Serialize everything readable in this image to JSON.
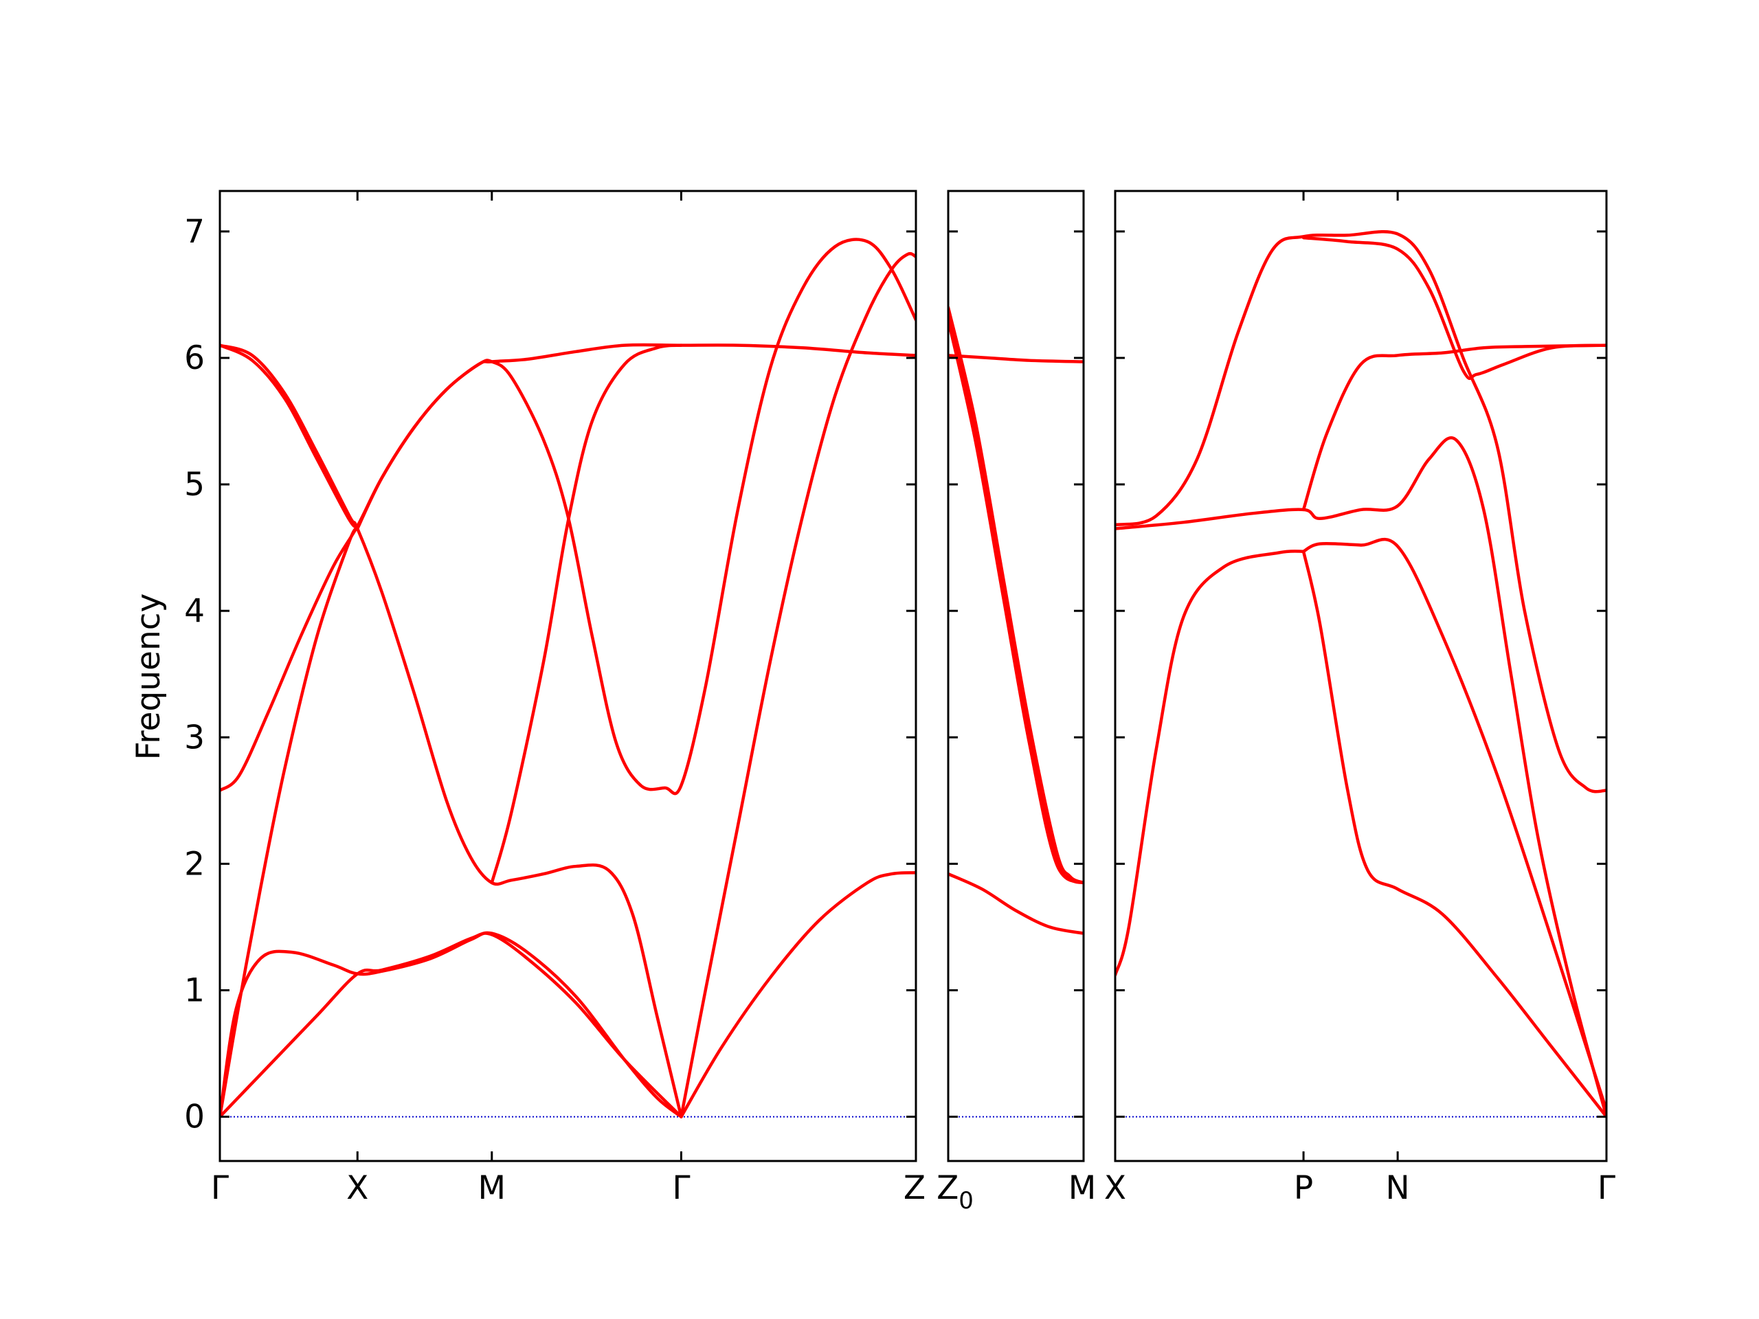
{
  "chart_data": {
    "type": "line",
    "ylabel": "Frequency",
    "ylim": [
      -0.35,
      7.32
    ],
    "yticks": [
      0,
      1,
      2,
      3,
      4,
      5,
      6,
      7
    ],
    "line_color": "#ff0000",
    "zero_line_color": "#0000cc",
    "panels": [
      {
        "id": "panel-1",
        "xlim": [
          0,
          4.3
        ],
        "labels": [
          {
            "x": 0.0,
            "text": "Γ"
          },
          {
            "x": 0.85,
            "text": "X"
          },
          {
            "x": 1.68,
            "text": "M"
          },
          {
            "x": 2.85,
            "text": "Γ"
          },
          {
            "x": 4.3,
            "text": "Z"
          }
        ],
        "bands": [
          [
            [
              0,
              2.58
            ],
            [
              0.12,
              2.7
            ],
            [
              0.3,
              3.2
            ],
            [
              0.5,
              3.8
            ],
            [
              0.7,
              4.35
            ],
            [
              0.85,
              4.67
            ],
            [
              1.0,
              5.05
            ],
            [
              1.2,
              5.45
            ],
            [
              1.4,
              5.75
            ],
            [
              1.6,
              5.95
            ],
            [
              1.68,
              5.97
            ],
            [
              1.9,
              5.99
            ],
            [
              2.2,
              6.05
            ],
            [
              2.5,
              6.1
            ],
            [
              2.85,
              6.1
            ],
            [
              3.2,
              6.1
            ],
            [
              3.6,
              6.08
            ],
            [
              4.0,
              6.04
            ],
            [
              4.3,
              6.02
            ]
          ],
          [
            [
              0,
              6.1
            ],
            [
              0.2,
              6.02
            ],
            [
              0.4,
              5.72
            ],
            [
              0.6,
              5.25
            ],
            [
              0.8,
              4.75
            ],
            [
              0.85,
              4.65
            ],
            [
              1.0,
              4.15
            ],
            [
              1.2,
              3.35
            ],
            [
              1.4,
              2.5
            ],
            [
              1.55,
              2.05
            ],
            [
              1.68,
              1.85
            ],
            [
              1.8,
              1.87
            ],
            [
              2.0,
              1.92
            ],
            [
              2.2,
              1.98
            ],
            [
              2.4,
              1.95
            ],
            [
              2.55,
              1.6
            ],
            [
              2.7,
              0.8
            ],
            [
              2.85,
              0.0
            ]
          ],
          [
            [
              0,
              6.1
            ],
            [
              0.2,
              5.98
            ],
            [
              0.4,
              5.68
            ],
            [
              0.6,
              5.2
            ],
            [
              0.8,
              4.72
            ],
            [
              0.85,
              4.67
            ]
          ],
          [
            [
              0,
              0.0
            ],
            [
              0.12,
              0.9
            ],
            [
              0.25,
              1.8
            ],
            [
              0.4,
              2.75
            ],
            [
              0.6,
              3.8
            ],
            [
              0.8,
              4.55
            ],
            [
              0.85,
              4.65
            ]
          ],
          [
            [
              0.85,
              4.65
            ],
            [
              1.0,
              5.05
            ],
            [
              1.2,
              5.45
            ],
            [
              1.4,
              5.75
            ],
            [
              1.6,
              5.95
            ],
            [
              1.68,
              5.97
            ],
            [
              1.8,
              5.85
            ],
            [
              2.0,
              5.35
            ],
            [
              2.15,
              4.75
            ],
            [
              2.3,
              3.8
            ],
            [
              2.45,
              2.95
            ],
            [
              2.6,
              2.62
            ],
            [
              2.75,
              2.6
            ],
            [
              2.85,
              2.62
            ],
            [
              3.0,
              3.4
            ],
            [
              3.2,
              4.8
            ],
            [
              3.4,
              5.92
            ],
            [
              3.6,
              6.55
            ],
            [
              3.8,
              6.88
            ],
            [
              4.0,
              6.92
            ],
            [
              4.15,
              6.7
            ],
            [
              4.3,
              6.3
            ]
          ],
          [
            [
              1.68,
              1.85
            ],
            [
              1.8,
              2.4
            ],
            [
              2.0,
              3.6
            ],
            [
              2.15,
              4.7
            ],
            [
              2.3,
              5.5
            ],
            [
              2.5,
              5.95
            ],
            [
              2.7,
              6.08
            ],
            [
              2.85,
              6.1
            ]
          ],
          [
            [
              0,
              0.0
            ],
            [
              0.1,
              0.85
            ],
            [
              0.25,
              1.25
            ],
            [
              0.45,
              1.3
            ],
            [
              0.7,
              1.2
            ],
            [
              0.85,
              1.13
            ],
            [
              1.0,
              1.15
            ],
            [
              1.3,
              1.25
            ],
            [
              1.55,
              1.4
            ],
            [
              1.68,
              1.45
            ],
            [
              1.9,
              1.3
            ],
            [
              2.2,
              0.95
            ],
            [
              2.5,
              0.45
            ],
            [
              2.7,
              0.15
            ],
            [
              2.85,
              0.0
            ]
          ],
          [
            [
              0,
              0.0
            ],
            [
              0.3,
              0.4
            ],
            [
              0.6,
              0.8
            ],
            [
              0.85,
              1.13
            ],
            [
              1.0,
              1.16
            ],
            [
              1.3,
              1.27
            ],
            [
              1.55,
              1.41
            ],
            [
              1.68,
              1.44
            ],
            [
              1.9,
              1.25
            ],
            [
              2.2,
              0.9
            ],
            [
              2.5,
              0.45
            ],
            [
              2.85,
              0.0
            ]
          ],
          [
            [
              2.85,
              0.0
            ],
            [
              3.0,
              1.0
            ],
            [
              3.2,
              2.3
            ],
            [
              3.4,
              3.6
            ],
            [
              3.6,
              4.75
            ],
            [
              3.8,
              5.7
            ],
            [
              4.0,
              6.35
            ],
            [
              4.15,
              6.7
            ],
            [
              4.25,
              6.82
            ],
            [
              4.3,
              6.8
            ]
          ],
          [
            [
              2.85,
              0.0
            ],
            [
              3.1,
              0.55
            ],
            [
              3.4,
              1.1
            ],
            [
              3.7,
              1.55
            ],
            [
              4.0,
              1.85
            ],
            [
              4.15,
              1.92
            ],
            [
              4.3,
              1.93
            ]
          ]
        ]
      },
      {
        "id": "panel-2",
        "xlim": [
          0,
          1.0
        ],
        "labels": [
          {
            "x": 0.0,
            "text": "Z",
            "sub": "0"
          },
          {
            "x": 1.0,
            "text": "M"
          }
        ],
        "bands": [
          [
            [
              0,
              6.02
            ],
            [
              0.3,
              6.0
            ],
            [
              0.6,
              5.98
            ],
            [
              1.0,
              5.97
            ]
          ],
          [
            [
              0,
              6.4
            ],
            [
              0.2,
              5.5
            ],
            [
              0.4,
              4.3
            ],
            [
              0.6,
              3.1
            ],
            [
              0.8,
              2.1
            ],
            [
              0.9,
              1.9
            ],
            [
              1.0,
              1.85
            ]
          ],
          [
            [
              0,
              6.35
            ],
            [
              0.2,
              5.4
            ],
            [
              0.4,
              4.2
            ],
            [
              0.6,
              3.0
            ],
            [
              0.8,
              2.05
            ],
            [
              0.9,
              1.88
            ],
            [
              1.0,
              1.85
            ]
          ],
          [
            [
              0,
              6.3
            ],
            [
              0.2,
              5.35
            ],
            [
              0.4,
              4.15
            ],
            [
              0.6,
              2.95
            ],
            [
              0.8,
              2.0
            ],
            [
              1.0,
              1.85
            ]
          ],
          [
            [
              0,
              1.92
            ],
            [
              0.25,
              1.8
            ],
            [
              0.5,
              1.63
            ],
            [
              0.75,
              1.5
            ],
            [
              1.0,
              1.45
            ]
          ]
        ]
      },
      {
        "id": "panel-3",
        "xlim": [
          0,
          3.6
        ],
        "labels": [
          {
            "x": 0.0,
            "text": "X"
          },
          {
            "x": 1.38,
            "text": "P"
          },
          {
            "x": 2.07,
            "text": "N"
          },
          {
            "x": 3.6,
            "text": "Γ"
          }
        ],
        "bands": [
          [
            [
              0,
              4.68
            ],
            [
              0.3,
              4.75
            ],
            [
              0.6,
              5.2
            ],
            [
              0.9,
              6.2
            ],
            [
              1.15,
              6.85
            ],
            [
              1.38,
              6.96
            ],
            [
              1.7,
              6.97
            ],
            [
              2.07,
              6.98
            ],
            [
              2.3,
              6.7
            ],
            [
              2.55,
              6.0
            ],
            [
              2.8,
              5.3
            ],
            [
              3.0,
              4.0
            ],
            [
              3.25,
              2.9
            ],
            [
              3.45,
              2.6
            ],
            [
              3.6,
              2.58
            ]
          ],
          [
            [
              1.38,
              6.95
            ],
            [
              1.7,
              6.92
            ],
            [
              2.07,
              6.86
            ],
            [
              2.3,
              6.55
            ],
            [
              2.55,
              5.9
            ],
            [
              2.65,
              5.87
            ],
            [
              2.85,
              5.95
            ],
            [
              3.2,
              6.08
            ],
            [
              3.6,
              6.1
            ]
          ],
          [
            [
              1.38,
              4.8
            ],
            [
              1.55,
              5.4
            ],
            [
              1.8,
              5.95
            ],
            [
              2.07,
              6.02
            ],
            [
              2.4,
              6.04
            ],
            [
              2.7,
              6.08
            ],
            [
              3.0,
              6.09
            ],
            [
              3.6,
              6.1
            ]
          ],
          [
            [
              0,
              4.65
            ],
            [
              0.5,
              4.7
            ],
            [
              1.0,
              4.77
            ],
            [
              1.38,
              4.8
            ],
            [
              1.5,
              4.73
            ],
            [
              1.8,
              4.8
            ],
            [
              2.07,
              4.83
            ],
            [
              2.3,
              5.2
            ],
            [
              2.5,
              5.35
            ],
            [
              2.7,
              4.8
            ],
            [
              2.9,
              3.5
            ],
            [
              3.1,
              2.2
            ],
            [
              3.35,
              1.0
            ],
            [
              3.6,
              0.0
            ]
          ],
          [
            [
              0,
              1.12
            ],
            [
              0.1,
              1.5
            ],
            [
              0.3,
              2.9
            ],
            [
              0.5,
              3.95
            ],
            [
              0.8,
              4.35
            ],
            [
              1.2,
              4.46
            ],
            [
              1.38,
              4.47
            ]
          ],
          [
            [
              1.38,
              4.47
            ],
            [
              1.5,
              4.53
            ],
            [
              1.8,
              4.52
            ],
            [
              2.07,
              4.51
            ],
            [
              2.4,
              3.8
            ],
            [
              2.8,
              2.7
            ],
            [
              3.2,
              1.4
            ],
            [
              3.6,
              0.05
            ]
          ],
          [
            [
              1.38,
              4.47
            ],
            [
              1.5,
              3.9
            ],
            [
              1.7,
              2.6
            ],
            [
              1.85,
              1.95
            ],
            [
              2.07,
              1.8
            ],
            [
              2.4,
              1.6
            ],
            [
              2.8,
              1.1
            ],
            [
              3.2,
              0.55
            ],
            [
              3.6,
              0.0
            ]
          ]
        ]
      }
    ]
  }
}
